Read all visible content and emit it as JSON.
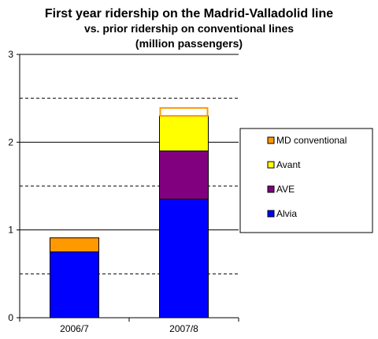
{
  "chart_data": {
    "type": "bar",
    "stacked": true,
    "title": "First year ridership on the Madrid-Valladolid line",
    "subtitle_lines": [
      "vs. prior ridership on conventional lines",
      "(million passengers)"
    ],
    "categories": [
      "2006/7",
      "2007/8"
    ],
    "ylim": [
      0,
      3
    ],
    "yticks": [
      "0",
      "1",
      "2",
      "3"
    ],
    "grid": "solid at integers, dashed at half-units",
    "legend_position": "right",
    "series": [
      {
        "name": "Alvia",
        "values": [
          0.75,
          1.35
        ],
        "color": "#0000ff"
      },
      {
        "name": "AVE",
        "values": [
          0,
          0.55
        ],
        "color": "#800080"
      },
      {
        "name": "Avant",
        "values": [
          0,
          0.4
        ],
        "color": "#ffff00"
      },
      {
        "name": "MD conventional",
        "values": [
          0.16,
          0.09
        ],
        "color": "#ff9900",
        "note_style_per_category": [
          "filled",
          "outline"
        ]
      }
    ],
    "legend_order": [
      "MD conventional",
      "Avant",
      "AVE",
      "Alvia"
    ]
  }
}
